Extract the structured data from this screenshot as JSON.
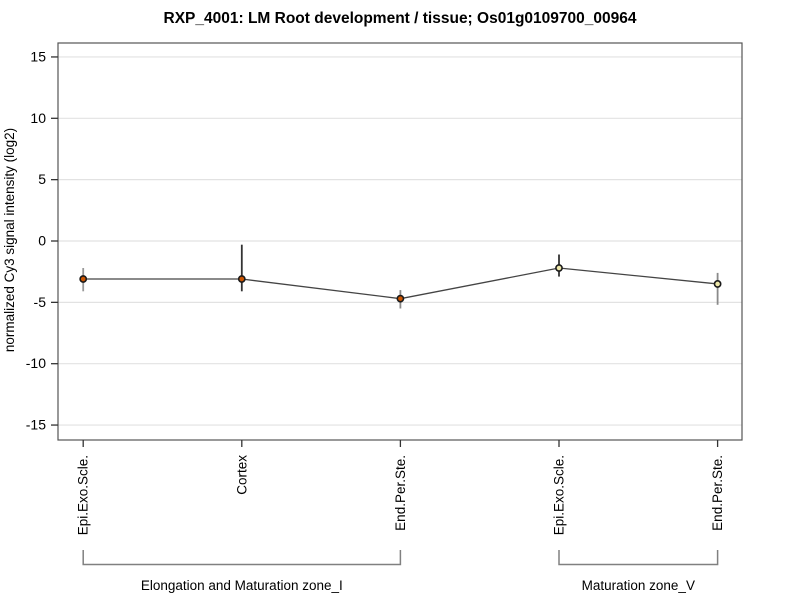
{
  "title": "RXP_4001: LM Root development / tissue; Os01g0109700_00964",
  "chart_data": {
    "type": "line",
    "title": "RXP_4001: LM Root development / tissue; Os01g0109700_00964",
    "xlabel": "",
    "ylabel": "normalized Cy3 signal intensity (log2)",
    "ylim": [
      -16.4,
      16.2
    ],
    "yticks": [
      15,
      10,
      5,
      0,
      -5,
      -10,
      -15
    ],
    "grid": "horizontal",
    "legend": "none",
    "categories": [
      "Epi.Exo.Scle.",
      "Cortex",
      "End.Per.Ste.",
      "Epi.Exo.Scle.",
      "End.Per.Ste."
    ],
    "groups": [
      {
        "label": "Elongation and Maturation zone_I",
        "from": 0,
        "to": 2
      },
      {
        "label": "Maturation zone_V",
        "from": 3,
        "to": 4
      }
    ],
    "series": [
      {
        "name": "normalized Cy3 signal intensity (log2)",
        "values": [
          -3.1,
          -3.1,
          -4.7,
          -2.2,
          -3.5
        ],
        "error_high": [
          -2.2,
          -0.3,
          -4.0,
          -1.1,
          -2.6
        ],
        "error_low": [
          -4.1,
          -4.1,
          -5.5,
          -2.9,
          -5.2
        ],
        "marker_colors": [
          "#cc5500",
          "#cc5500",
          "#cc5500",
          "#eee8aa",
          "#eee8aa"
        ],
        "whisker_colors": [
          "#999999",
          "#333333",
          "#8a8a8a",
          "#333333",
          "#8a8a8a"
        ]
      }
    ],
    "colors": {
      "background": "#ffffff",
      "grid": "#e2e2e2",
      "axis_box": "#555555",
      "tick": "#333333",
      "line": "#444444",
      "marker_stroke": "#1a1a1a",
      "bracket": "#808080",
      "marker_orange": "#cc5500",
      "marker_pale_yellow": "#eee8aa"
    }
  }
}
